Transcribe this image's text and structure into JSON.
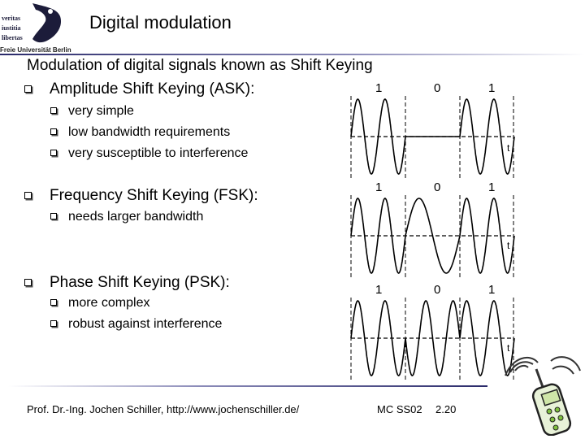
{
  "header": {
    "logo_lines": [
      "veritas",
      "iustitia",
      "libertas"
    ],
    "university": "Freie Universität Berlin",
    "title": "Digital modulation"
  },
  "content": {
    "heading": "Modulation of digital signals known as Shift Keying",
    "sections": [
      {
        "label": "Amplitude Shift Keying (ASK):",
        "points": [
          "very simple",
          "low bandwidth requirements",
          "very susceptible to interference"
        ]
      },
      {
        "label": "Frequency Shift Keying (FSK):",
        "points": [
          "needs larger bandwidth"
        ]
      },
      {
        "label": "Phase Shift Keying (PSK):",
        "points": [
          "more complex",
          "robust against interference"
        ]
      }
    ]
  },
  "diagrams": [
    {
      "name": "ASK",
      "bits": [
        "1",
        "0",
        "1"
      ],
      "time_label": "t"
    },
    {
      "name": "FSK",
      "bits": [
        "1",
        "0",
        "1"
      ],
      "time_label": "t"
    },
    {
      "name": "PSK",
      "bits": [
        "1",
        "0",
        "1"
      ],
      "time_label": "t"
    }
  ],
  "footer": {
    "author": "Prof. Dr.-Ing. Jochen Schiller, http://www.jochenschiller.de/",
    "course": "MC SS02",
    "page": "2.20"
  },
  "colors": {
    "header_line": "#2a2a6a",
    "accent_green": "#7fbf3f"
  },
  "icons": {
    "logo": "university-seal-icon",
    "phone": "mobile-phone-icon"
  }
}
